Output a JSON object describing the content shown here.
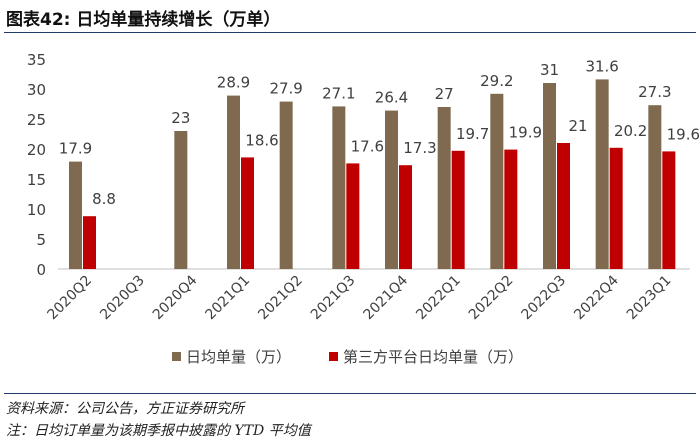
{
  "page": {
    "title": "图表42: 日均单量持续增长（万单）",
    "source": "资料来源：公司公告，方正证券研究所",
    "note": "注：日均订单量为该期季报中披露的 YTD 平均值"
  },
  "colors": {
    "series1": "#7f6a4f",
    "series2": "#c00000"
  },
  "chart_data": {
    "type": "bar",
    "categories": [
      "2020Q2",
      "2020Q3",
      "2020Q4",
      "2021Q1",
      "2021Q2",
      "2021Q3",
      "2021Q4",
      "2022Q1",
      "2022Q2",
      "2022Q3",
      "2022Q4",
      "2023Q1"
    ],
    "series": [
      {
        "name": "日均单量（万）",
        "values": [
          17.9,
          null,
          23,
          28.9,
          27.9,
          27.1,
          26.4,
          27,
          29.2,
          31,
          31.6,
          27.3
        ]
      },
      {
        "name": "第三方平台日均单量（万）",
        "values": [
          8.8,
          null,
          null,
          18.6,
          null,
          17.6,
          17.3,
          19.7,
          19.9,
          21,
          20.2,
          19.6
        ]
      }
    ],
    "ylim": [
      0,
      35
    ],
    "yticks": [
      0,
      5,
      10,
      15,
      20,
      25,
      30,
      35
    ],
    "grid": false,
    "legend": "bottom-center"
  }
}
